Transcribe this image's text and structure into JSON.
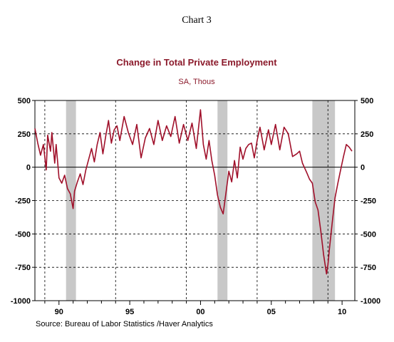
{
  "chart_heading": "Chart 3",
  "source_note": "Source:  Bureau of Labor Statistics /Haver Analytics",
  "colors": {
    "line": "#a0102a",
    "title": "#8b1a2b",
    "recession": "#c8c8c8",
    "axis": "#000000"
  },
  "chart_data": {
    "type": "line",
    "title": "Change in Total Private Employment",
    "subtitle": "SA, Thous",
    "xlabel": "",
    "ylabel": "",
    "x_units": "year",
    "xlim": [
      1988.3,
      2010.9
    ],
    "ylim": [
      -1000,
      500
    ],
    "y_ticks": [
      500,
      250,
      0,
      -250,
      -500,
      -750,
      -1000
    ],
    "y_tick_labels": [
      "500",
      "250",
      "0",
      "-250",
      "-500",
      "-750",
      "-1000"
    ],
    "x_tick_labels": [
      {
        "year": 1990,
        "label": "90"
      },
      {
        "year": 1995,
        "label": "95"
      },
      {
        "year": 2000,
        "label": "00"
      },
      {
        "year": 2005,
        "label": "05"
      },
      {
        "year": 2010,
        "label": "10"
      }
    ],
    "vertical_gridlines": [
      1989.0,
      1994.0,
      1999.0,
      2004.0,
      2009.0
    ],
    "grid": "dashed",
    "zero_line": true,
    "recession_shading": [
      {
        "start": 1990.5,
        "end": 1991.2
      },
      {
        "start": 2001.2,
        "end": 2001.9
      },
      {
        "start": 2007.9,
        "end": 2009.5
      }
    ],
    "series": [
      {
        "x": [
          1988.3,
          1988.5,
          1988.7,
          1988.9,
          1989.1,
          1989.2,
          1989.4,
          1989.5,
          1989.7,
          1989.8,
          1990.0,
          1990.2,
          1990.4,
          1990.6,
          1990.8,
          1991.0,
          1991.1,
          1991.3,
          1991.5,
          1991.7,
          1991.9,
          1992.1,
          1992.3,
          1992.5,
          1992.7,
          1992.9,
          1993.1,
          1993.3,
          1993.5,
          1993.7,
          1993.9,
          1994.1,
          1994.3,
          1994.6,
          1994.9,
          1995.2,
          1995.5,
          1995.8,
          1996.1,
          1996.4,
          1996.7,
          1997.0,
          1997.3,
          1997.6,
          1997.9,
          1998.2,
          1998.5,
          1998.8,
          1999.1,
          1999.4,
          1999.7,
          2000.0,
          2000.2,
          2000.4,
          2000.6,
          2000.8,
          2001.0,
          2001.2,
          2001.4,
          2001.6,
          2001.8,
          2002.0,
          2002.2,
          2002.4,
          2002.6,
          2002.8,
          2003.0,
          2003.2,
          2003.4,
          2003.6,
          2003.8,
          2004.0,
          2004.2,
          2004.5,
          2004.8,
          2005.0,
          2005.3,
          2005.6,
          2005.9,
          2006.2,
          2006.5,
          2006.8,
          2007.0,
          2007.2,
          2007.5,
          2007.7,
          2007.9,
          2008.1,
          2008.3,
          2008.5,
          2008.7,
          2008.9,
          2009.0,
          2009.1,
          2009.3,
          2009.5,
          2009.7,
          2009.9,
          2010.1,
          2010.3,
          2010.5,
          2010.7
        ],
        "values": [
          290,
          180,
          90,
          170,
          -20,
          240,
          120,
          260,
          30,
          170,
          -80,
          -120,
          -60,
          -160,
          -200,
          -310,
          -180,
          -110,
          -50,
          -130,
          -20,
          60,
          140,
          40,
          170,
          260,
          100,
          230,
          350,
          180,
          280,
          310,
          200,
          380,
          260,
          170,
          320,
          70,
          220,
          290,
          170,
          350,
          200,
          310,
          230,
          380,
          180,
          320,
          200,
          330,
          140,
          430,
          170,
          60,
          200,
          50,
          -60,
          -210,
          -300,
          -350,
          -190,
          -30,
          -110,
          50,
          -80,
          150,
          60,
          140,
          170,
          180,
          70,
          200,
          300,
          130,
          280,
          170,
          320,
          130,
          300,
          250,
          80,
          100,
          120,
          30,
          -40,
          -90,
          -120,
          -260,
          -320,
          -480,
          -660,
          -800,
          -730,
          -620,
          -420,
          -230,
          -120,
          -20,
          80,
          170,
          150,
          120
        ]
      }
    ]
  }
}
